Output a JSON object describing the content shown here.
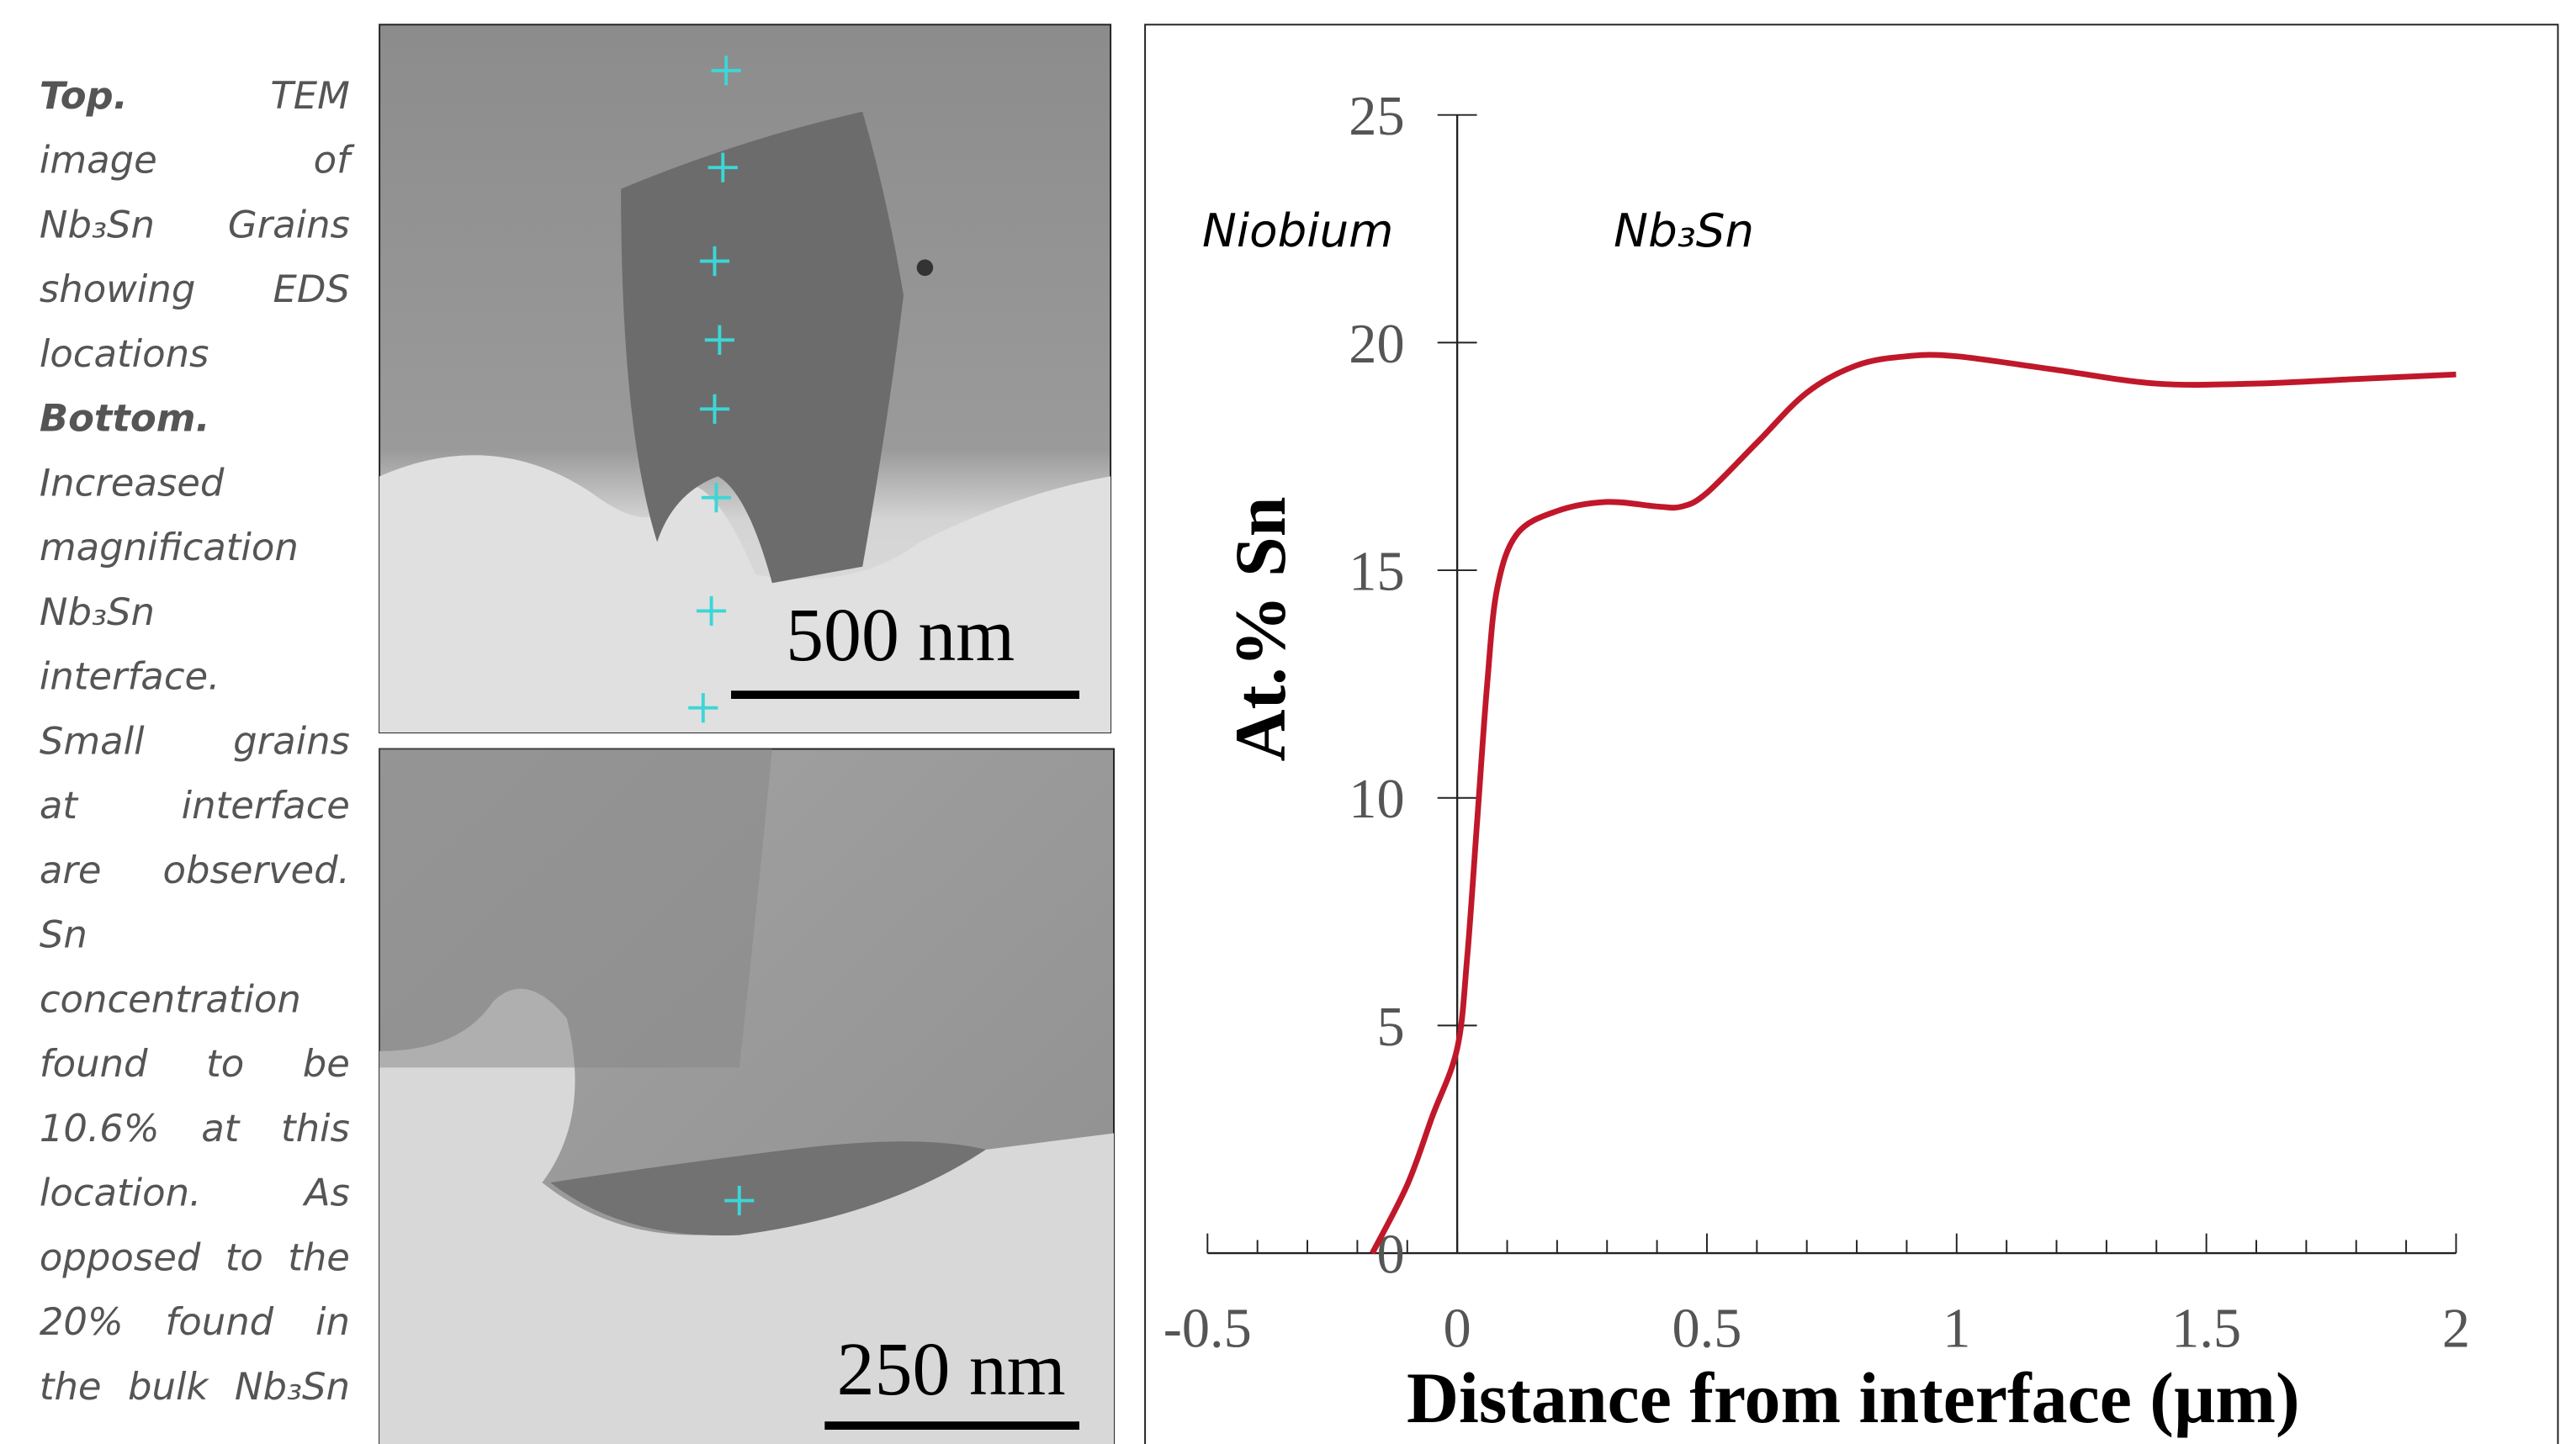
{
  "caption": {
    "top": {
      "heading": "Top.",
      "lines": [
        "TEM",
        "image of",
        "Nb₃Sn Grains",
        "showing EDS",
        "locations"
      ]
    },
    "bottom": {
      "heading": "Bottom.",
      "lines": [
        "Increased",
        "magnification",
        "Nb₃Sn",
        "interface.",
        "Small grains",
        "at interface",
        "are observed.",
        "Sn",
        "concentration",
        "found to be",
        "10.6% at this",
        "location. As",
        "opposed to the",
        "20% found in",
        "the bulk Nb₃Sn"
      ]
    }
  },
  "images": {
    "top_scale": "500 nm",
    "bottom_scale": "250 nm"
  },
  "chart_data": {
    "type": "line",
    "annotations": [
      "Niobium",
      "Nb₃Sn"
    ],
    "xlabel": "Distance from interface (µm)",
    "ylabel": "At.% Sn",
    "x": [
      -0.17,
      -0.1,
      -0.05,
      0,
      0.02,
      0.04,
      0.06,
      0.08,
      0.12,
      0.2,
      0.3,
      0.4,
      0.45,
      0.5,
      0.6,
      0.7,
      0.8,
      0.9,
      1.0,
      1.2,
      1.4,
      1.6,
      1.8,
      2.0
    ],
    "values": [
      0,
      1.5,
      3,
      4.5,
      6.5,
      9.5,
      12.5,
      14.6,
      15.8,
      16.3,
      16.5,
      16.4,
      16.4,
      16.7,
      17.8,
      18.9,
      19.5,
      19.7,
      19.7,
      19.4,
      19.1,
      19.1,
      19.2,
      19.3
    ],
    "color": "#c0182a",
    "xlim": [
      -0.5,
      2
    ],
    "xticks": [
      -0.5,
      0,
      0.5,
      1,
      1.5,
      2
    ],
    "xminorticks": [
      -0.4,
      -0.3,
      -0.2,
      -0.1,
      0.1,
      0.2,
      0.3,
      0.4,
      0.6,
      0.7,
      0.8,
      0.9,
      1.1,
      1.2,
      1.3,
      1.4,
      1.6,
      1.7,
      1.8,
      1.9
    ],
    "ylim": [
      0,
      25
    ],
    "yticks": [
      0,
      5,
      10,
      15,
      20,
      25
    ]
  }
}
